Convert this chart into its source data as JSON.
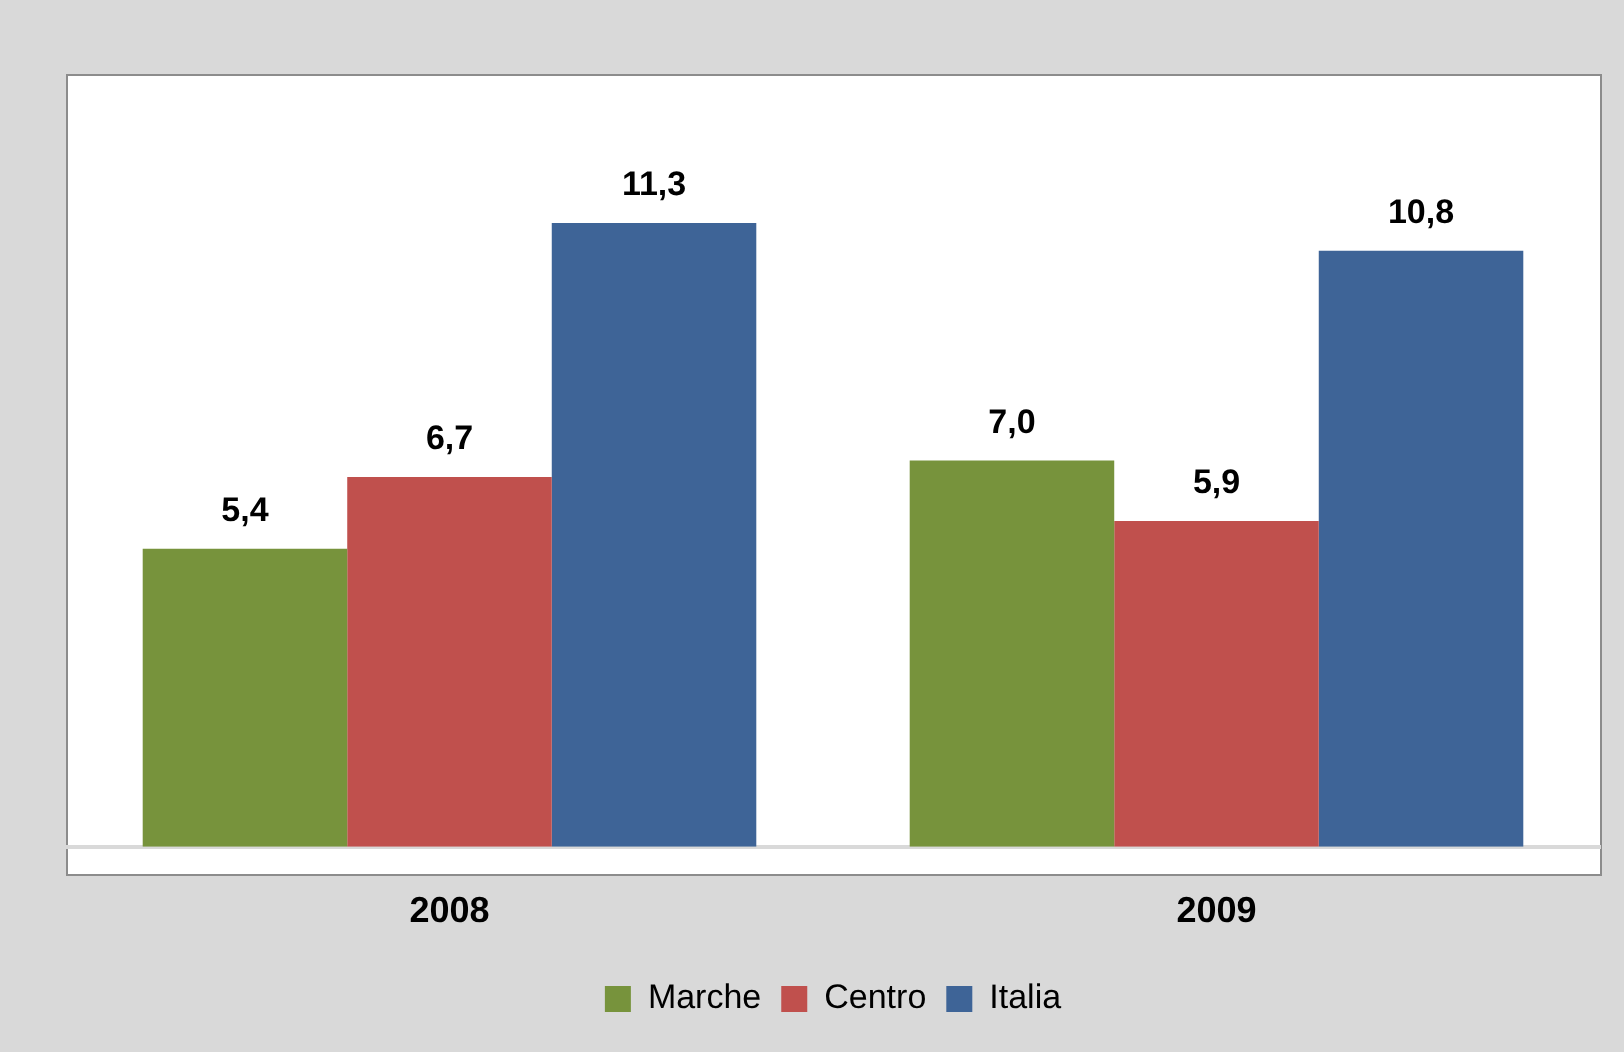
{
  "chart_data": {
    "type": "bar",
    "tick_labels": "x",
    "categories": [
      "2008",
      "2009"
    ],
    "legend": "bottom",
    "series": [
      {
        "name": "Marche",
        "color": "#77933c",
        "values": [
          5.4,
          7.0
        ],
        "value_labels": [
          "5,4",
          "7,0"
        ]
      },
      {
        "name": "Centro",
        "color": "#c0504d",
        "values": [
          6.7,
          5.9
        ],
        "value_labels": [
          "6,7",
          "5,9"
        ]
      },
      {
        "name": "Italia",
        "color": "#3e6497",
        "values": [
          11.3,
          10.8
        ],
        "value_labels": [
          "11,3",
          "10,8"
        ]
      }
    ]
  }
}
